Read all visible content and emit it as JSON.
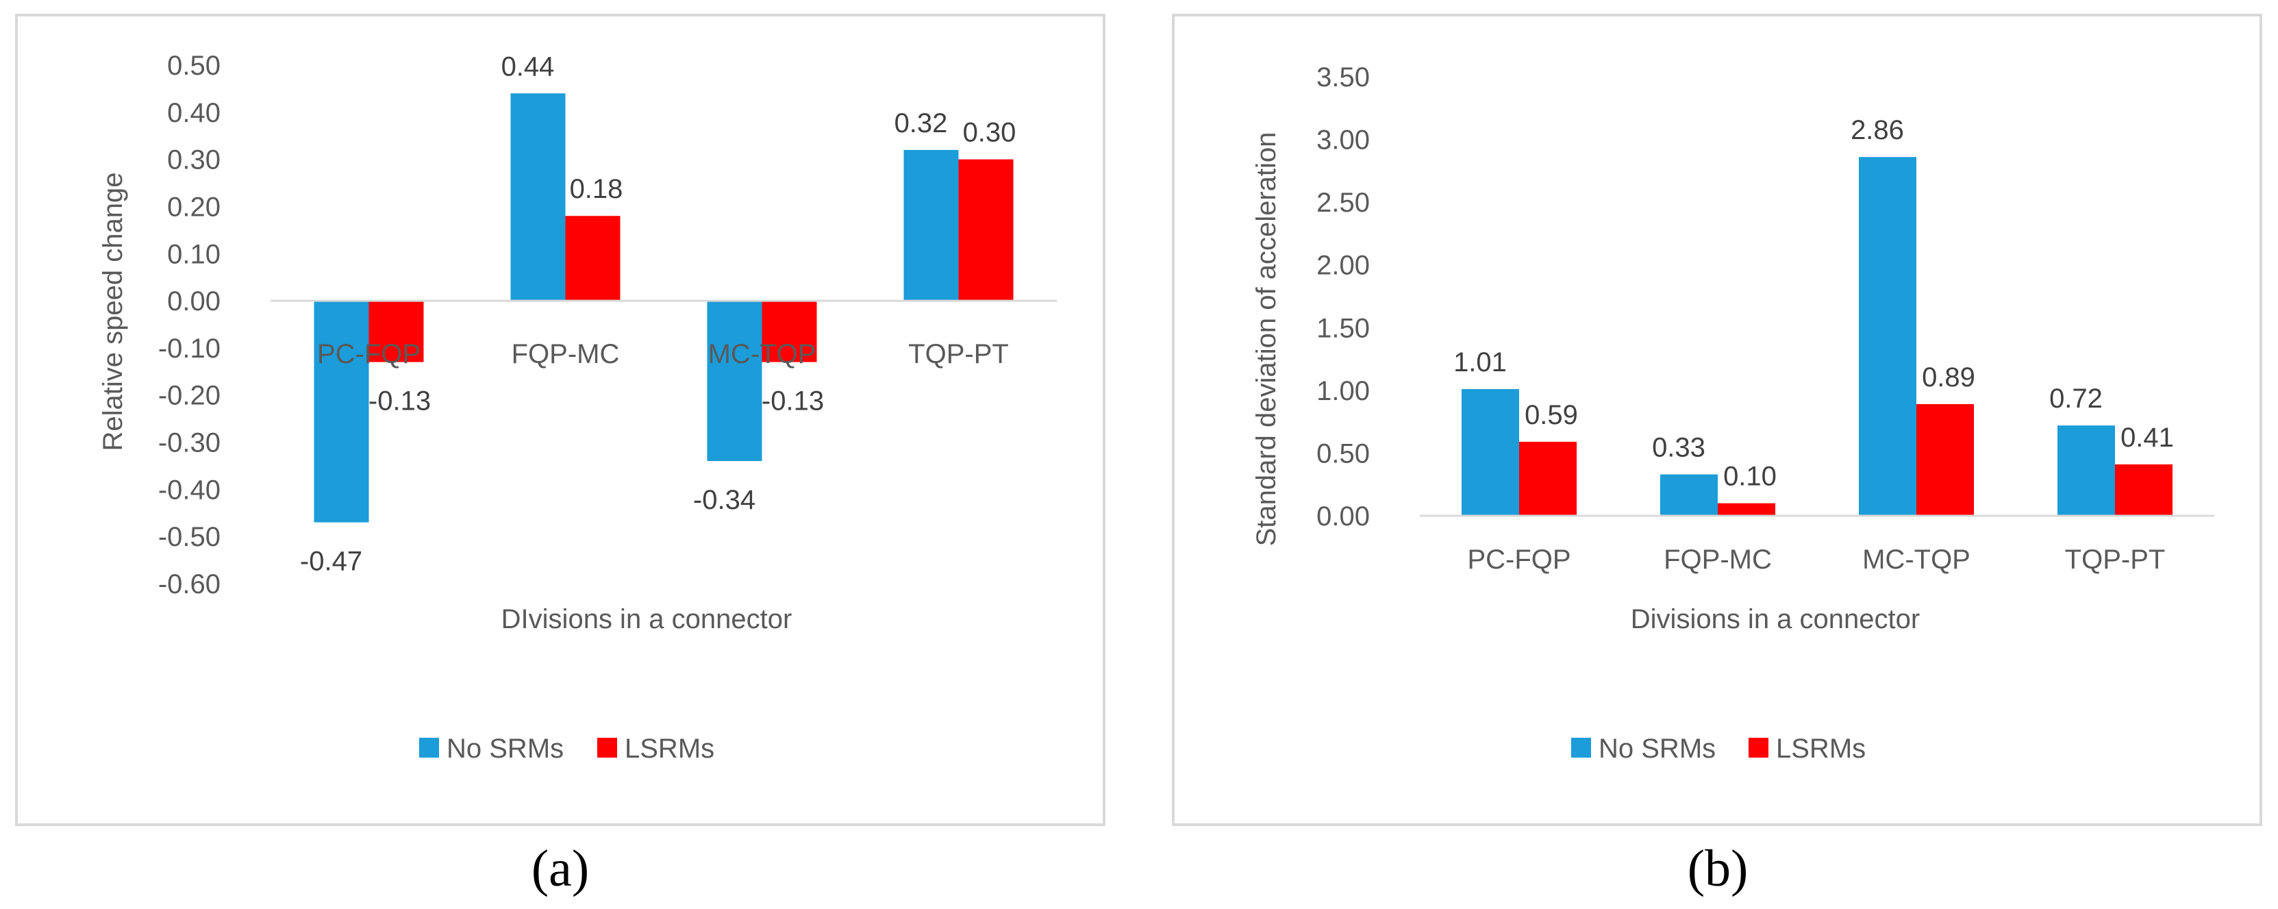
{
  "colors": {
    "no_srms": "#1c9cd9",
    "lsrms": "#ff0000",
    "axis": "#d9d9d9",
    "text": "#595959"
  },
  "chart_data": [
    {
      "panel": "a",
      "caption": "(a)",
      "type": "bar",
      "xlabel": "DIvisions in a connector",
      "ylabel": "Relative speed change",
      "categories": [
        "PC-FQP",
        "FQP-MC",
        "MC-TQP",
        "TQP-PT"
      ],
      "ylim": [
        -0.6,
        0.5
      ],
      "yticks": [
        0.5,
        0.4,
        0.3,
        0.2,
        0.1,
        0.0,
        -0.1,
        -0.2,
        -0.3,
        -0.4,
        -0.5,
        -0.6
      ],
      "ytick_labels": [
        "0.50",
        "0.40",
        "0.30",
        "0.20",
        "0.10",
        "0.00",
        "-0.10",
        "-0.20",
        "-0.30",
        "-0.40",
        "-0.50",
        "-0.60"
      ],
      "legend_position": "bottom",
      "series": [
        {
          "name": "No SRMs",
          "values": [
            -0.47,
            0.44,
            -0.34,
            0.32
          ],
          "labels": [
            "-0.47",
            "0.44",
            "-0.34",
            "0.32"
          ]
        },
        {
          "name": "LSRMs",
          "values": [
            -0.13,
            0.18,
            -0.13,
            0.3
          ],
          "labels": [
            "-0.13",
            "0.18",
            "-0.13",
            "0.30"
          ]
        }
      ]
    },
    {
      "panel": "b",
      "caption": "(b)",
      "type": "bar",
      "xlabel": "Divisions in a connector",
      "ylabel": "Standard deviation of  acceleration",
      "categories": [
        "PC-FQP",
        "FQP-MC",
        "MC-TQP",
        "TQP-PT"
      ],
      "ylim": [
        0,
        3.5
      ],
      "yticks": [
        3.5,
        3.0,
        2.5,
        2.0,
        1.5,
        1.0,
        0.5,
        0.0
      ],
      "ytick_labels": [
        "3.50",
        "3.00",
        "2.50",
        "2.00",
        "1.50",
        "1.00",
        "0.50",
        "0.00"
      ],
      "legend_position": "bottom",
      "series": [
        {
          "name": "No SRMs",
          "values": [
            1.01,
            0.33,
            2.86,
            0.72
          ],
          "labels": [
            "1.01",
            "0.33",
            "2.86",
            "0.72"
          ]
        },
        {
          "name": "LSRMs",
          "values": [
            0.59,
            0.1,
            0.89,
            0.41
          ],
          "labels": [
            "0.59",
            "0.10",
            "0.89",
            "0.41"
          ]
        }
      ]
    }
  ]
}
